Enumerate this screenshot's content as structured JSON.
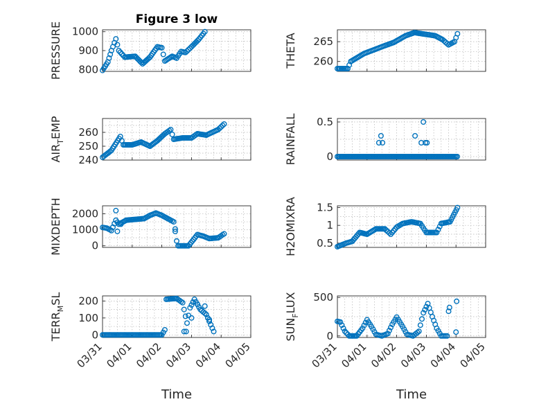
{
  "figure": {
    "background": "#ffffff",
    "marker_color": "#0072BD",
    "marker": "circle-open"
  },
  "chart_data": [
    {
      "type": "scatter",
      "title": "Figure 3 low",
      "ylabel": "PRESSURE",
      "xlabel": "",
      "ylim": [
        790,
        1010
      ],
      "yticks": [
        800,
        900,
        1000
      ],
      "grid": true,
      "keys": [
        [
          0.0,
          795
        ],
        [
          0.18,
          840
        ],
        [
          0.3,
          900
        ],
        [
          0.45,
          962
        ],
        [
          0.55,
          900
        ],
        [
          0.75,
          865
        ],
        [
          1.1,
          870
        ],
        [
          1.35,
          830
        ],
        [
          1.6,
          865
        ],
        [
          1.85,
          920
        ],
        [
          2.0,
          915
        ],
        [
          2.1,
          845
        ],
        [
          2.35,
          870
        ],
        [
          2.5,
          860
        ],
        [
          2.65,
          895
        ],
        [
          2.8,
          890
        ],
        [
          3.0,
          920
        ],
        [
          3.25,
          960
        ],
        [
          3.45,
          1000
        ]
      ]
    },
    {
      "type": "scatter",
      "title": "",
      "ylabel": "THETA",
      "xlabel": "",
      "ylim": [
        257.5,
        268
      ],
      "yticks": [
        260,
        265
      ],
      "grid": true,
      "keys": [
        [
          0.0,
          258.2
        ],
        [
          0.35,
          258.2
        ],
        [
          0.45,
          260
        ],
        [
          0.9,
          262
        ],
        [
          1.6,
          264
        ],
        [
          1.9,
          264.8
        ],
        [
          2.3,
          266.5
        ],
        [
          2.6,
          267.3
        ],
        [
          2.85,
          267
        ],
        [
          3.3,
          266.5
        ],
        [
          3.55,
          265.5
        ],
        [
          3.75,
          264.2
        ],
        [
          3.95,
          265
        ],
        [
          4.05,
          267
        ]
      ]
    },
    {
      "type": "scatter",
      "title": "",
      "ylabel": "AIR_TEMP",
      "xlabel": "",
      "ylim": [
        240,
        270
      ],
      "yticks": [
        240,
        250,
        260
      ],
      "grid": true,
      "keys": [
        [
          0.0,
          242
        ],
        [
          0.3,
          247
        ],
        [
          0.6,
          257
        ],
        [
          0.7,
          251
        ],
        [
          1.0,
          251
        ],
        [
          1.3,
          253
        ],
        [
          1.6,
          250
        ],
        [
          1.85,
          254
        ],
        [
          2.1,
          259
        ],
        [
          2.3,
          262
        ],
        [
          2.4,
          255
        ],
        [
          2.7,
          256
        ],
        [
          3.0,
          256
        ],
        [
          3.2,
          259
        ],
        [
          3.5,
          258
        ],
        [
          3.9,
          262
        ],
        [
          4.1,
          266
        ]
      ]
    },
    {
      "type": "scatter",
      "title": "",
      "ylabel": "RAINFALL",
      "xlabel": "",
      "ylim": [
        -0.05,
        0.55
      ],
      "yticks": [
        0,
        0.5
      ],
      "grid": true,
      "x_range": [
        0.0,
        4.06
      ],
      "baseline": 0,
      "extras": [
        [
          1.4,
          0.2
        ],
        [
          1.47,
          0.3
        ],
        [
          1.52,
          0.2
        ],
        [
          2.62,
          0.3
        ],
        [
          2.83,
          0.2
        ],
        [
          2.9,
          0.5
        ],
        [
          2.97,
          0.2
        ],
        [
          3.02,
          0.2
        ]
      ]
    },
    {
      "type": "scatter",
      "title": "",
      "ylabel": "MIXDEPTH",
      "xlabel": "",
      "ylim": [
        -100,
        2500
      ],
      "yticks": [
        0,
        1000,
        2000
      ],
      "grid": true,
      "keys": [
        [
          0.0,
          1150
        ],
        [
          0.15,
          1100
        ],
        [
          0.3,
          950
        ],
        [
          0.45,
          1600
        ],
        [
          0.55,
          1350
        ],
        [
          0.8,
          1600
        ],
        [
          1.1,
          1650
        ],
        [
          1.4,
          1700
        ],
        [
          1.6,
          1900
        ],
        [
          1.8,
          2050
        ],
        [
          2.0,
          1900
        ],
        [
          2.2,
          1700
        ],
        [
          2.4,
          1500
        ],
        [
          2.5,
          300
        ],
        [
          2.55,
          0
        ],
        [
          2.9,
          0
        ],
        [
          3.2,
          700
        ],
        [
          3.4,
          600
        ],
        [
          3.6,
          450
        ],
        [
          3.9,
          500
        ],
        [
          4.1,
          750
        ]
      ],
      "extras": [
        [
          0.45,
          2200
        ],
        [
          0.62,
          1350
        ],
        [
          0.5,
          900
        ],
        [
          2.45,
          1050
        ]
      ]
    },
    {
      "type": "scatter",
      "title": "",
      "ylabel": "H2OMIXRA",
      "xlabel": "",
      "ylim": [
        0.38,
        1.55
      ],
      "yticks": [
        0.5,
        1,
        1.5
      ],
      "grid": true,
      "keys": [
        [
          0.0,
          0.4
        ],
        [
          0.3,
          0.5
        ],
        [
          0.5,
          0.55
        ],
        [
          0.75,
          0.8
        ],
        [
          1.0,
          0.75
        ],
        [
          1.3,
          0.9
        ],
        [
          1.6,
          0.9
        ],
        [
          1.8,
          0.75
        ],
        [
          2.0,
          0.95
        ],
        [
          2.2,
          1.05
        ],
        [
          2.5,
          1.1
        ],
        [
          2.8,
          1.05
        ],
        [
          3.0,
          0.8
        ],
        [
          3.35,
          0.8
        ],
        [
          3.5,
          1.05
        ],
        [
          3.8,
          1.1
        ],
        [
          4.05,
          1.5
        ]
      ]
    },
    {
      "type": "scatter",
      "title": "",
      "ylabel": "TERR_MSL",
      "xlabel": "Time",
      "ylim": [
        -15,
        230
      ],
      "yticks": [
        0,
        100,
        200
      ],
      "grid": true,
      "keys": [
        [
          0.0,
          0
        ],
        [
          2.0,
          0
        ],
        [
          2.1,
          30
        ],
        [
          2.15,
          210
        ],
        [
          2.5,
          215
        ],
        [
          2.7,
          190
        ],
        [
          2.8,
          110
        ],
        [
          2.85,
          70
        ],
        [
          2.95,
          160
        ],
        [
          3.1,
          210
        ],
        [
          3.3,
          150
        ],
        [
          3.5,
          120
        ],
        [
          3.65,
          60
        ],
        [
          3.75,
          20
        ]
      ],
      "extras": [
        [
          2.75,
          20
        ],
        [
          2.82,
          20
        ],
        [
          3.0,
          100
        ],
        [
          3.2,
          180
        ],
        [
          3.45,
          170
        ],
        [
          3.6,
          90
        ]
      ]
    },
    {
      "type": "scatter",
      "title": "",
      "ylabel": "SUN_FLUX",
      "xlabel": "Time",
      "ylim": [
        -20,
        520
      ],
      "yticks": [
        0,
        500
      ],
      "grid": true,
      "keys": [
        [
          0.0,
          190
        ],
        [
          0.1,
          180
        ],
        [
          0.25,
          60
        ],
        [
          0.4,
          0
        ],
        [
          0.65,
          0
        ],
        [
          0.85,
          100
        ],
        [
          1.0,
          210
        ],
        [
          1.15,
          120
        ],
        [
          1.3,
          20
        ],
        [
          1.5,
          0
        ],
        [
          1.7,
          30
        ],
        [
          1.85,
          150
        ],
        [
          2.0,
          245
        ],
        [
          2.2,
          120
        ],
        [
          2.35,
          20
        ],
        [
          2.55,
          0
        ],
        [
          2.75,
          60
        ],
        [
          2.9,
          300
        ],
        [
          3.05,
          420
        ],
        [
          3.2,
          250
        ],
        [
          3.35,
          100
        ],
        [
          3.5,
          0
        ],
        [
          3.7,
          0
        ]
      ],
      "extras": [
        [
          3.75,
          320
        ],
        [
          3.78,
          370
        ],
        [
          4.02,
          450
        ],
        [
          4.0,
          50
        ]
      ]
    }
  ],
  "axes": {
    "x_tick_labels": [
      "03/31",
      "04/01",
      "04/02",
      "04/03",
      "04/04",
      "04/05"
    ],
    "xlabel": "Time"
  }
}
